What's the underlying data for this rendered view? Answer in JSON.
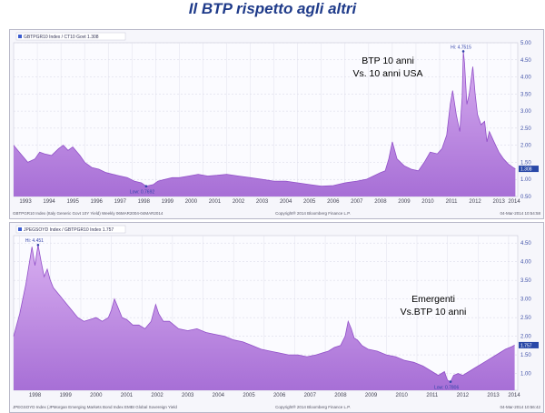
{
  "page_title": "Il BTP rispetto agli altri",
  "colors": {
    "area_fill_top": "#d8aef0",
    "area_fill_bottom": "#a76fd6",
    "line": "#9150c8",
    "axis_text": "#4455aa",
    "title": "#1f3b8a",
    "last_box": "#2a49a8"
  },
  "chart_data": [
    {
      "type": "area",
      "legend": "GBTPGR10 Index / CT10 Govt  1.308",
      "footer_left": "GBTPGR10 Index (Italy Generic Govt 10Y Yield)  Weekly 06MAR2004-04MAR2014",
      "footer_center": "Copyright® 2014 Bloomberg Finance L.P.",
      "footer_right": "04-Mar-2014 10:54:58",
      "annotation_line1": "BTP 10 anni",
      "annotation_line2": "Vs. 10 anni  USA",
      "high_label": "Hi: 4.7515",
      "low_label": "Low: 0.7692",
      "last_value_label": "1.308",
      "x_tick_labels": [
        "1993",
        "1994",
        "1995",
        "1996",
        "1997",
        "1998",
        "1999",
        "2000",
        "2001",
        "2002",
        "2003",
        "2004",
        "2005",
        "2006",
        "2007",
        "2008",
        "2009",
        "2010",
        "2011",
        "2012",
        "2013",
        "2014"
      ],
      "y_tick_labels": [
        "0.50",
        "1.00",
        "1.50",
        "2.00",
        "2.50",
        "3.00",
        "3.50",
        "4.00",
        "4.50",
        "5.00"
      ],
      "ylim": [
        0.5,
        5.0
      ],
      "xlim": [
        1993.0,
        2014.3
      ],
      "x": [
        1993.0,
        1993.3,
        1993.6,
        1993.9,
        1994.1,
        1994.3,
        1994.6,
        1994.9,
        1995.1,
        1995.3,
        1995.5,
        1995.8,
        1996.0,
        1996.3,
        1996.6,
        1996.9,
        1997.2,
        1997.5,
        1997.8,
        1998.1,
        1998.4,
        1998.6,
        1998.9,
        1999.1,
        1999.4,
        1999.7,
        2000.0,
        2000.4,
        2000.8,
        2001.2,
        2001.6,
        2002.0,
        2002.5,
        2003.0,
        2003.5,
        2004.0,
        2004.5,
        2005.0,
        2005.5,
        2006.0,
        2006.5,
        2007.0,
        2007.5,
        2007.9,
        2008.2,
        2008.5,
        2008.7,
        2008.85,
        2009.0,
        2009.2,
        2009.5,
        2009.8,
        2010.1,
        2010.35,
        2010.6,
        2010.9,
        2011.1,
        2011.3,
        2011.45,
        2011.55,
        2011.7,
        2011.85,
        2011.95,
        2012.0,
        2012.05,
        2012.15,
        2012.25,
        2012.4,
        2012.5,
        2012.6,
        2012.75,
        2012.9,
        2013.0,
        2013.1,
        2013.3,
        2013.5,
        2013.7,
        2013.9,
        2014.1,
        2014.2
      ],
      "y": [
        2.0,
        1.75,
        1.5,
        1.6,
        1.8,
        1.75,
        1.7,
        1.9,
        2.0,
        1.85,
        1.95,
        1.7,
        1.5,
        1.35,
        1.3,
        1.2,
        1.15,
        1.1,
        1.05,
        0.95,
        0.9,
        0.8,
        0.85,
        0.95,
        1.0,
        1.05,
        1.05,
        1.1,
        1.15,
        1.1,
        1.12,
        1.15,
        1.1,
        1.05,
        1.0,
        0.95,
        0.95,
        0.9,
        0.85,
        0.8,
        0.82,
        0.9,
        0.95,
        1.0,
        1.1,
        1.2,
        1.25,
        1.6,
        2.1,
        1.6,
        1.4,
        1.3,
        1.25,
        1.5,
        1.8,
        1.75,
        1.9,
        2.3,
        3.2,
        3.6,
        2.9,
        2.4,
        3.4,
        4.75,
        4.4,
        3.2,
        3.5,
        4.3,
        3.5,
        2.9,
        2.6,
        2.7,
        2.1,
        2.4,
        2.1,
        1.8,
        1.6,
        1.45,
        1.35,
        1.31
      ]
    },
    {
      "type": "area",
      "legend": "JPEGSOYD Index / GBTPGR10 Index  1.757",
      "footer_left": "JPEGSOYD Index (JPMorgan Emerging Markets Bond Index EMBI Global Sovereign Yield",
      "footer_center": "Copyright® 2014 Bloomberg Finance L.P.",
      "footer_right": "04-Mar-2014 10:56:42",
      "annotation_line1": "Emergenti",
      "annotation_line2": "Vs.BTP 10 anni",
      "high_label": "Hi: 4.451",
      "low_label": "Low: 0.7806",
      "last_value_label": "1.757",
      "x_tick_labels": [
        "1998",
        "1999",
        "2000",
        "2001",
        "2002",
        "2003",
        "2004",
        "2005",
        "2006",
        "2007",
        "2008",
        "2009",
        "2010",
        "2011",
        "2012",
        "2013",
        "2014"
      ],
      "y_tick_labels": [
        "1.00",
        "1.50",
        "2.00",
        "2.50",
        "3.00",
        "3.50",
        "4.00",
        "4.50"
      ],
      "ylim": [
        0.55,
        4.7
      ],
      "xlim": [
        1997.8,
        2014.3
      ],
      "x": [
        1997.8,
        1998.0,
        1998.2,
        1998.4,
        1998.5,
        1998.6,
        1998.7,
        1998.8,
        1998.9,
        1999.0,
        1999.1,
        1999.3,
        1999.5,
        1999.7,
        1999.9,
        2000.1,
        2000.3,
        2000.5,
        2000.7,
        2000.9,
        2001.0,
        2001.1,
        2001.2,
        2001.35,
        2001.5,
        2001.7,
        2001.9,
        2002.1,
        2002.3,
        2002.45,
        2002.55,
        2002.7,
        2002.9,
        2003.2,
        2003.5,
        2003.8,
        2004.1,
        2004.4,
        2004.7,
        2005.0,
        2005.3,
        2005.6,
        2005.9,
        2006.2,
        2006.5,
        2006.8,
        2007.1,
        2007.4,
        2007.7,
        2007.9,
        2008.1,
        2008.3,
        2008.5,
        2008.65,
        2008.75,
        2008.85,
        2008.95,
        2009.05,
        2009.2,
        2009.4,
        2009.7,
        2010.0,
        2010.3,
        2010.6,
        2010.9,
        2011.2,
        2011.5,
        2011.7,
        2011.9,
        2012.0,
        2012.1,
        2012.2,
        2012.35,
        2012.5,
        2012.7,
        2012.9,
        2013.1,
        2013.3,
        2013.5,
        2013.7,
        2013.9,
        2014.1,
        2014.2
      ],
      "y": [
        2.0,
        2.6,
        3.4,
        4.4,
        3.9,
        4.45,
        4.0,
        3.6,
        3.8,
        3.5,
        3.3,
        3.1,
        2.9,
        2.7,
        2.5,
        2.4,
        2.45,
        2.5,
        2.4,
        2.5,
        2.7,
        3.0,
        2.8,
        2.5,
        2.45,
        2.3,
        2.3,
        2.2,
        2.4,
        2.85,
        2.6,
        2.4,
        2.4,
        2.2,
        2.15,
        2.2,
        2.1,
        2.05,
        2.0,
        1.9,
        1.85,
        1.75,
        1.65,
        1.6,
        1.55,
        1.5,
        1.5,
        1.45,
        1.5,
        1.55,
        1.6,
        1.7,
        1.75,
        2.0,
        2.4,
        2.2,
        1.95,
        1.9,
        1.75,
        1.65,
        1.6,
        1.5,
        1.45,
        1.35,
        1.3,
        1.2,
        1.05,
        0.95,
        1.05,
        0.82,
        0.78,
        0.95,
        1.0,
        0.95,
        1.05,
        1.15,
        1.25,
        1.35,
        1.45,
        1.55,
        1.65,
        1.72,
        1.76
      ]
    }
  ]
}
